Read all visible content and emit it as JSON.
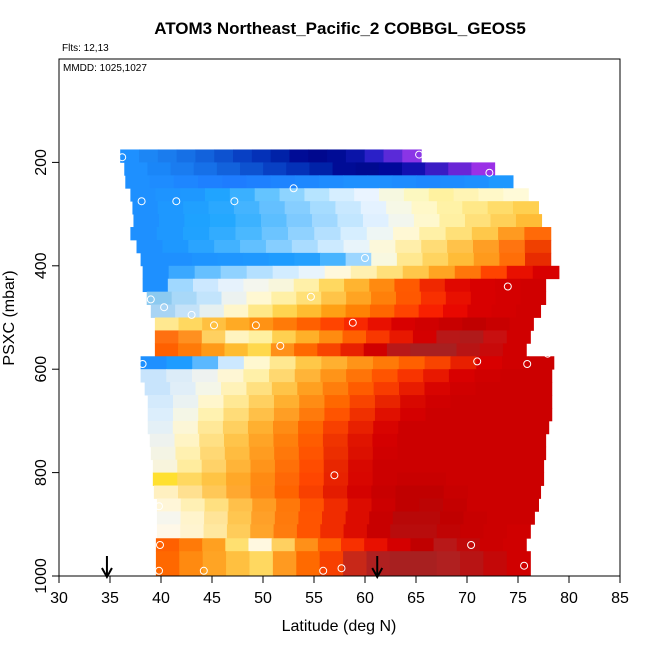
{
  "chart_data": {
    "type": "heatmap",
    "title": "ATOM3 Northeast_Pacific_2 COBBGL_GEOS5",
    "notes": [
      "Flts: 12,13",
      "MMDD: 1025,1027"
    ],
    "xlabel": "Latitude (deg N)",
    "ylabel": "PSXC (mbar)",
    "xlim": [
      30,
      85
    ],
    "ylim": [
      1000,
      0
    ],
    "x_ticks": [
      30,
      35,
      40,
      45,
      50,
      55,
      60,
      65,
      70,
      75,
      80,
      85
    ],
    "y_ticks": [
      200,
      400,
      600,
      800,
      1000
    ],
    "x_tick_labels": [
      "30",
      "35",
      "40",
      "45",
      "50",
      "55",
      "60",
      "65",
      "70",
      "75",
      "80",
      "85"
    ],
    "y_tick_labels": [
      "200",
      "400",
      "600",
      "800",
      "1000"
    ],
    "arrows_at_latitude": [
      34.7,
      61.2
    ],
    "curtain_rows": [
      {
        "p_top": 175,
        "p_bottom": 200,
        "lat_start": 36.0,
        "lat_end": 65.5,
        "colors": [
          "#1e90ff",
          "#1c86f5",
          "#1a7cee",
          "#1670e6",
          "#1262dc",
          "#0d52d0",
          "#0840c4",
          "#0431b8",
          "#0022a8",
          "#000c96",
          "#00088e",
          "#000c96",
          "#0a14a8",
          "#2a20c8",
          "#5a2ad8",
          "#8a35e6"
        ]
      },
      {
        "p_top": 200,
        "p_bottom": 225,
        "lat_start": 36.4,
        "lat_end": 72.7,
        "colors": [
          "#1e90ff",
          "#1a86f8",
          "#1a7cf0",
          "#1670e8",
          "#1262dc",
          "#0d52d0",
          "#0840c4",
          "#0431b8",
          "#0022a8",
          "#000c96",
          "#000a90",
          "#00089a",
          "#1210b0",
          "#3a1cc4",
          "#6a26d6",
          "#9a30e6"
        ]
      },
      {
        "p_top": 225,
        "p_bottom": 250,
        "lat_start": 36.5,
        "lat_end": 74.5,
        "colors": [
          "#1e90ff",
          "#1e8cff",
          "#1e86ff",
          "#1e80ff",
          "#1e7cff",
          "#1e80ff",
          "#1e84ff",
          "#1e88ff",
          "#1e8cff",
          "#1e90ff",
          "#1e90ff",
          "#1e8cff",
          "#1e88ff",
          "#1e8cff",
          "#1e90ff",
          "#1e98ff"
        ]
      },
      {
        "p_top": 250,
        "p_bottom": 275,
        "lat_start": 37.0,
        "lat_end": 76.0,
        "colors": [
          "#1e90ff",
          "#1e94ff",
          "#1e98ff",
          "#20a4ff",
          "#3ab0ff",
          "#64c4ff",
          "#8ed4ff",
          "#b6e4ff",
          "#d6eeff",
          "#eaf4ff",
          "#f6f8e0",
          "#fcf8c0",
          "#fff2a0",
          "#fff4b4",
          "#fff8c8",
          "#fffad8"
        ]
      },
      {
        "p_top": 275,
        "p_bottom": 300,
        "lat_start": 37.2,
        "lat_end": 77.0,
        "colors": [
          "#1e90ff",
          "#1e98ff",
          "#20a0ff",
          "#2aa8ff",
          "#44b4ff",
          "#64c0ff",
          "#86ceff",
          "#a6dcff",
          "#c8e8ff",
          "#e4f2ff",
          "#f6f8e6",
          "#fff8c8",
          "#fff2a6",
          "#ffe888",
          "#ffdc6a",
          "#ffd050"
        ]
      },
      {
        "p_top": 300,
        "p_bottom": 325,
        "lat_start": 37.3,
        "lat_end": 77.3,
        "colors": [
          "#1e90ff",
          "#1e98ff",
          "#1ea2ff",
          "#24a8ff",
          "#3cb2ff",
          "#5cbeff",
          "#7ecaff",
          "#a0d8ff",
          "#c2e6ff",
          "#dff0ff",
          "#f2f6ee",
          "#fef8ce",
          "#fff0a2",
          "#ffe07a",
          "#ffd058",
          "#ffbc36"
        ]
      },
      {
        "p_top": 325,
        "p_bottom": 350,
        "lat_start": 37.0,
        "lat_end": 78.2,
        "colors": [
          "#1e90ff",
          "#1e98ff",
          "#20a2ff",
          "#32acff",
          "#4ab8ff",
          "#6cc4ff",
          "#90d2ff",
          "#b4e0ff",
          "#d6eeff",
          "#eef6f4",
          "#fff8d4",
          "#fff0a6",
          "#ffe078",
          "#ffc84a",
          "#ff9a20",
          "#ff6a08"
        ]
      },
      {
        "p_top": 350,
        "p_bottom": 375,
        "lat_start": 37.6,
        "lat_end": 78.2,
        "colors": [
          "#1e90ff",
          "#1e98ff",
          "#2aa4ff",
          "#42b2ff",
          "#62c0ff",
          "#86ceff",
          "#aadcff",
          "#cceaff",
          "#e8f4fa",
          "#fcf8da",
          "#ffeeaa",
          "#ffdc76",
          "#ffc24a",
          "#ff9e24",
          "#ff7410",
          "#f04000"
        ]
      },
      {
        "p_top": 375,
        "p_bottom": 400,
        "lat_start": 38.0,
        "lat_end": 78.2,
        "colors": [
          "#1e90ff",
          "#1e90ff",
          "#1e94ff",
          "#1e96ff",
          "#1e98ff",
          "#1e9cff",
          "#24a0ff",
          "#48b4ff",
          "#9cd6ff",
          "#f8f8e0",
          "#ffe890",
          "#ffd460",
          "#ffbc38",
          "#ff9a1c",
          "#ff6e08",
          "#e82c00"
        ]
      },
      {
        "p_top": 400,
        "p_bottom": 425,
        "lat_start": 38.2,
        "lat_end": 79.0,
        "colors": [
          "#1e90ff",
          "#3aa8ff",
          "#66c0ff",
          "#90d2ff",
          "#b4e0ff",
          "#d2ecff",
          "#e8f4fc",
          "#fff8dc",
          "#fff0b0",
          "#ffe07a",
          "#ffc64a",
          "#ffa422",
          "#ff760a",
          "#ff4400",
          "#e81000",
          "#d80000"
        ]
      },
      {
        "p_top": 425,
        "p_bottom": 450,
        "lat_start": 38.2,
        "lat_end": 77.7,
        "colors": [
          "#1e90ff",
          "#a0d8ff",
          "#cce8ff",
          "#e6f2fc",
          "#f4f6ee",
          "#f8f6dc",
          "#fff0a8",
          "#ffd860",
          "#ffb430",
          "#ff8a10",
          "#ff5a00",
          "#f02800",
          "#e00800",
          "#d80000",
          "#d40000",
          "#d00000"
        ]
      },
      {
        "p_top": 450,
        "p_bottom": 475,
        "lat_start": 38.6,
        "lat_end": 77.7,
        "colors": [
          "#8ccaf0",
          "#a8d8f8",
          "#c2e4fc",
          "#ecf2f0",
          "#fff8d2",
          "#fff0a6",
          "#ffe078",
          "#ffc448",
          "#ffa422",
          "#ff800a",
          "#ff5800",
          "#f83000",
          "#e81000",
          "#d80000",
          "#d40000",
          "#d00000"
        ]
      },
      {
        "p_top": 475,
        "p_bottom": 500,
        "lat_start": 39.0,
        "lat_end": 77.2,
        "colors": [
          "#a8d4f4",
          "#c4e2f8",
          "#e6f0f0",
          "#fff6ca",
          "#ffe888",
          "#ffd450",
          "#ffbc30",
          "#ffa014",
          "#ff8204",
          "#ff6600",
          "#ff4400",
          "#f82000",
          "#e80800",
          "#d80000",
          "#d40000",
          "#d00000"
        ]
      },
      {
        "p_top": 500,
        "p_bottom": 525,
        "lat_start": 39.4,
        "lat_end": 76.5,
        "colors": [
          "#ffe890",
          "#ffd860",
          "#ffc040",
          "#ffaa24",
          "#ff9214",
          "#ff7a08",
          "#ff6000",
          "#ff4400",
          "#f82800",
          "#e81000",
          "#d80000",
          "#d00000",
          "#c80000",
          "#c00000",
          "#c80000",
          "#d00000"
        ]
      },
      {
        "p_top": 525,
        "p_bottom": 550,
        "lat_start": 39.4,
        "lat_end": 76.2,
        "colors": [
          "#ff7010",
          "#ff9020",
          "#ffd060",
          "#fff4c0",
          "#fff0a0",
          "#ffd050",
          "#ffb028",
          "#ff8c10",
          "#ff6000",
          "#f83800",
          "#e81800",
          "#d40000",
          "#b81818",
          "#b01a1a",
          "#c81010",
          "#d00000"
        ]
      },
      {
        "p_top": 550,
        "p_bottom": 575,
        "lat_start": 39.4,
        "lat_end": 75.8,
        "colors": [
          "#ff6000",
          "#ff7a08",
          "#ff9a18",
          "#ffbc30",
          "#ffd84c",
          "#ff9018",
          "#ff6800",
          "#f84400",
          "#e82000",
          "#d00000",
          "#b81818",
          "#a82020",
          "#a82020",
          "#b81414",
          "#c80a0a",
          "#d00000"
        ]
      }
    ],
    "points": [
      {
        "lat": 36.2,
        "p": 190
      },
      {
        "lat": 65.3,
        "p": 185
      },
      {
        "lat": 72.2,
        "p": 220
      },
      {
        "lat": 38.1,
        "p": 275
      },
      {
        "lat": 41.5,
        "p": 275
      },
      {
        "lat": 47.2,
        "p": 275
      },
      {
        "lat": 53.0,
        "p": 250
      },
      {
        "lat": 60.0,
        "p": 385
      },
      {
        "lat": 37.3,
        "p": 445
      },
      {
        "lat": 39.0,
        "p": 465
      },
      {
        "lat": 40.3,
        "p": 480
      },
      {
        "lat": 43.0,
        "p": 495
      },
      {
        "lat": 45.2,
        "p": 515
      },
      {
        "lat": 49.3,
        "p": 515
      },
      {
        "lat": 51.7,
        "p": 555
      },
      {
        "lat": 54.7,
        "p": 460
      },
      {
        "lat": 58.8,
        "p": 510
      },
      {
        "lat": 74.0,
        "p": 440
      },
      {
        "lat": 38.2,
        "p": 590
      },
      {
        "lat": 71.0,
        "p": 585
      },
      {
        "lat": 75.9,
        "p": 590
      },
      {
        "lat": 77.9,
        "p": 570
      },
      {
        "lat": 79.3,
        "p": 603
      },
      {
        "lat": 57.0,
        "p": 805
      },
      {
        "lat": 39.8,
        "p": 865
      },
      {
        "lat": 39.9,
        "p": 940
      },
      {
        "lat": 70.4,
        "p": 940
      },
      {
        "lat": 39.8,
        "p": 990
      },
      {
        "lat": 44.2,
        "p": 990
      },
      {
        "lat": 55.9,
        "p": 990
      },
      {
        "lat": 57.7,
        "p": 985
      },
      {
        "lat": 75.6,
        "p": 980
      }
    ],
    "bottom_segments": [
      {
        "lat_start": 39.5,
        "lat_end": 75.8,
        "p_top": 927,
        "p_bottom": 952,
        "colors": [
          "#ff6000",
          "#ff7a08",
          "#ffa020",
          "#ffe070",
          "#fff8e0",
          "#ffd060",
          "#ff9018",
          "#ff6000",
          "#f83000",
          "#e81000",
          "#d40000",
          "#c00000",
          "#b81818",
          "#c00a0a",
          "#cc0000",
          "#d00000"
        ]
      },
      {
        "lat_start": 39.5,
        "lat_end": 76.2,
        "p_top": 952,
        "p_bottom": 1000,
        "colors": [
          "#ff6800",
          "#ff8a10",
          "#ffa424",
          "#ffc040",
          "#ffd860",
          "#ff9a20",
          "#ff6a00",
          "#f84000",
          "#c82818",
          "#b02020",
          "#a82020",
          "#a82020",
          "#b02020",
          "#b81414",
          "#c40808",
          "#d00000"
        ]
      }
    ],
    "mid_rows": [
      {
        "p_top": 575,
        "p_bottom": 600,
        "lat_start": 38.0,
        "lat_end": 78.5,
        "colors": [
          "#1e90ff",
          "#1e9cff",
          "#5ab8ff",
          "#cce8ff",
          "#fff8d0",
          "#ffe890",
          "#ffc848",
          "#ffb030",
          "#ff9418",
          "#ff7a08",
          "#ff6000",
          "#f84400",
          "#e82000",
          "#d80000",
          "#d00000",
          "#cc0000"
        ]
      },
      {
        "p_top": 600,
        "p_bottom": 625,
        "lat_start": 38.0,
        "lat_end": 78.3,
        "colors": [
          "#c8e4fc",
          "#dcecf8",
          "#eef2f0",
          "#fef6d4",
          "#fff0a8",
          "#ffd870",
          "#ffb438",
          "#ff9418",
          "#ff7408",
          "#ff5400",
          "#f83400",
          "#e81800",
          "#d80000",
          "#d00000",
          "#cc0000",
          "#cc0000"
        ]
      },
      {
        "p_top": 625,
        "p_bottom": 650,
        "lat_start": 38.4,
        "lat_end": 78.3,
        "colors": [
          "#c8e4fc",
          "#e0eef8",
          "#f4f6e8",
          "#fff2b8",
          "#ffe080",
          "#ffc448",
          "#ffa020",
          "#ff7e0c",
          "#ff5c00",
          "#f83c00",
          "#e81c00",
          "#d80400",
          "#d00000",
          "#cc0000",
          "#cc0000",
          "#cc0000"
        ]
      },
      {
        "p_top": 650,
        "p_bottom": 675,
        "lat_start": 38.7,
        "lat_end": 78.3,
        "colors": [
          "#d4eafc",
          "#eaf2f2",
          "#fff6cc",
          "#ffe894",
          "#ffd060",
          "#ffb030",
          "#ff8c14",
          "#ff6800",
          "#f84400",
          "#e82400",
          "#d80800",
          "#d00000",
          "#cc0000",
          "#cc0000",
          "#cc0000",
          "#cc0000"
        ]
      },
      {
        "p_top": 675,
        "p_bottom": 700,
        "lat_start": 38.7,
        "lat_end": 78.3,
        "colors": [
          "#dceefc",
          "#f4f6e6",
          "#fff2b0",
          "#ffdc78",
          "#ffc048",
          "#ff9e24",
          "#ff7a0c",
          "#ff5400",
          "#f03000",
          "#e01000",
          "#d40000",
          "#cc0000",
          "#cc0000",
          "#cc0000",
          "#cc0000",
          "#cc0000"
        ]
      },
      {
        "p_top": 700,
        "p_bottom": 725,
        "lat_start": 38.7,
        "lat_end": 78.0,
        "colors": [
          "#e4f0f6",
          "#fcf6d6",
          "#ffe898",
          "#ffd060",
          "#ffb030",
          "#ff8c14",
          "#ff6600",
          "#f84000",
          "#e82000",
          "#d80400",
          "#cc0000",
          "#cc0000",
          "#cc0000",
          "#cc0000",
          "#cc0000",
          "#cc0000"
        ]
      },
      {
        "p_top": 725,
        "p_bottom": 750,
        "lat_start": 38.9,
        "lat_end": 77.7,
        "colors": [
          "#eef2ee",
          "#fff4c4",
          "#ffe084",
          "#ffc44a",
          "#ffa426",
          "#ff800c",
          "#ff5c00",
          "#f03400",
          "#e01400",
          "#d40000",
          "#cc0000",
          "#cc0000",
          "#cc0000",
          "#cc0000",
          "#cc0000",
          "#cc0000"
        ]
      },
      {
        "p_top": 750,
        "p_bottom": 775,
        "lat_start": 39.0,
        "lat_end": 77.7,
        "colors": [
          "#f4f4e4",
          "#fff0b0",
          "#ffd874",
          "#ffbc40",
          "#ff9c20",
          "#ff780a",
          "#ff5400",
          "#ec2e00",
          "#dc1000",
          "#d00000",
          "#cc0000",
          "#cc0000",
          "#cc0000",
          "#cc0000",
          "#cc0000",
          "#cc0000"
        ]
      },
      {
        "p_top": 775,
        "p_bottom": 800,
        "lat_start": 39.2,
        "lat_end": 77.5,
        "colors": [
          "#f8f4dc",
          "#ffec9e",
          "#ffd268",
          "#ffb438",
          "#ff941a",
          "#ff7008",
          "#ff4c00",
          "#e82600",
          "#d80800",
          "#cc0000",
          "#cc0000",
          "#cc0000",
          "#cc0000",
          "#cc0000",
          "#cc0000",
          "#cc0000"
        ]
      },
      {
        "p_top": 800,
        "p_bottom": 825,
        "lat_start": 39.2,
        "lat_end": 77.5,
        "colors": [
          "#ffe030",
          "#ffd860",
          "#ffc444",
          "#ffa828",
          "#ff8a12",
          "#ff6806",
          "#ff4600",
          "#e82200",
          "#d80600",
          "#cc0000",
          "#c80000",
          "#c80000",
          "#cc0000",
          "#cc0000",
          "#cc0000",
          "#cc0000"
        ]
      },
      {
        "p_top": 825,
        "p_bottom": 850,
        "lat_start": 39.3,
        "lat_end": 77.2,
        "colors": [
          "#fff0c0",
          "#ffe090",
          "#ffc858",
          "#ffa830",
          "#ff8814",
          "#ff6400",
          "#f84000",
          "#e41c00",
          "#d40200",
          "#c80000",
          "#c00000",
          "#c00000",
          "#c80000",
          "#cc0000",
          "#cc0000",
          "#cc0000"
        ]
      },
      {
        "p_top": 850,
        "p_bottom": 875,
        "lat_start": 39.6,
        "lat_end": 77.0,
        "colors": [
          "#fff6d8",
          "#fff0b4",
          "#ffe080",
          "#ffc04a",
          "#ff9c22",
          "#ff780a",
          "#ff5200",
          "#f02c00",
          "#dc0c00",
          "#cc0000",
          "#c00000",
          "#bc0404",
          "#c40000",
          "#cc0000",
          "#cc0000",
          "#cc0000"
        ]
      },
      {
        "p_top": 875,
        "p_bottom": 900,
        "lat_start": 39.6,
        "lat_end": 76.6,
        "colors": [
          "#f6f6ee",
          "#fff4cc",
          "#ffe498",
          "#ffc650",
          "#ffa028",
          "#ff7a0c",
          "#ff5400",
          "#f02c00",
          "#dc0c00",
          "#c80000",
          "#b80808",
          "#b80808",
          "#c00000",
          "#c80000",
          "#cc0000",
          "#cc0000"
        ]
      },
      {
        "p_top": 900,
        "p_bottom": 927,
        "lat_start": 39.6,
        "lat_end": 76.2,
        "colors": [
          "#fff8e8",
          "#fff4d0",
          "#ffe8a0",
          "#ffcc5a",
          "#ffa42a",
          "#ff7c0e",
          "#ff5400",
          "#f02c00",
          "#dc0c00",
          "#c80000",
          "#b80c0c",
          "#b80c0c",
          "#c00404",
          "#c80000",
          "#cc0000",
          "#d00000"
        ]
      }
    ]
  }
}
